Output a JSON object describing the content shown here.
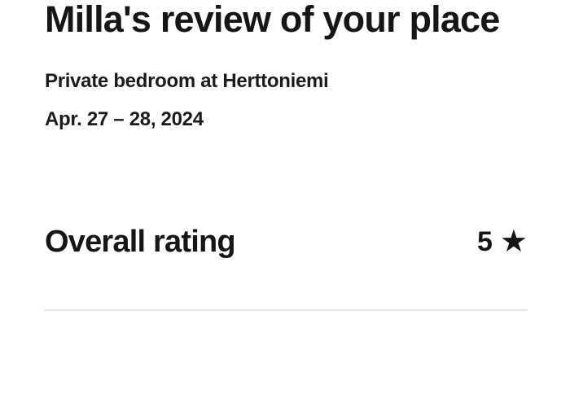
{
  "header": {
    "title": "Milla's review of your place"
  },
  "listing": {
    "name": "Private bedroom at Herttoniemi",
    "dates": "Apr. 27 – 28, 2024"
  },
  "rating": {
    "label": "Overall rating",
    "value": "5",
    "star_icon": "★"
  },
  "colors": {
    "text": "#161616",
    "divider": "#e2e2e2",
    "background": "#ffffff"
  }
}
